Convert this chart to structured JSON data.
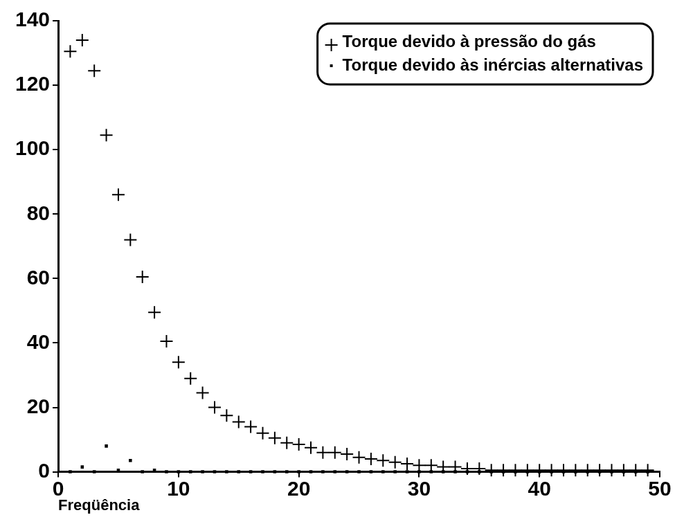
{
  "chart_data": {
    "type": "scatter",
    "xlabel": "Freqüência",
    "xlim": [
      0,
      50
    ],
    "xticks": [
      0,
      10,
      20,
      30,
      40,
      50
    ],
    "ylim": [
      0,
      140
    ],
    "yticks": [
      0,
      20,
      40,
      60,
      80,
      100,
      120,
      140
    ],
    "grid": false,
    "legend": "top right",
    "x": [
      1,
      2,
      3,
      4,
      5,
      6,
      7,
      8,
      9,
      10,
      11,
      12,
      13,
      14,
      15,
      16,
      17,
      18,
      19,
      20,
      21,
      22,
      23,
      24,
      25,
      26,
      27,
      28,
      29,
      30,
      31,
      32,
      33,
      34,
      35,
      36,
      37,
      38,
      39,
      40,
      41,
      42,
      43,
      44,
      45,
      46,
      47,
      48,
      49
    ],
    "series": [
      {
        "name": "Torque devido à pressão do gás",
        "color": "#000000",
        "marker": "cross",
        "values": [
          130.5,
          134,
          124.5,
          104.5,
          86,
          72,
          60.5,
          49.5,
          40.5,
          34,
          29,
          24.5,
          20,
          17.5,
          15.5,
          14,
          12,
          10.5,
          9,
          8.5,
          7.5,
          6,
          6,
          5.5,
          4.5,
          4,
          3.5,
          3,
          2.5,
          2,
          2,
          1.5,
          1.5,
          1,
          1,
          0.5,
          0.5,
          0.5,
          0.5,
          0.5,
          0.5,
          0.5,
          0.5,
          0.5,
          0.5,
          0.5,
          0.5,
          0.5,
          0.5
        ]
      },
      {
        "name": "Torque devido às inércias alternativas",
        "color": "#000000",
        "marker": "square",
        "values": [
          0,
          1.5,
          0,
          8,
          0.5,
          3.5,
          0,
          0.5,
          0,
          0,
          0,
          0,
          0,
          0,
          0,
          0,
          0,
          0,
          0,
          0,
          0,
          0,
          0,
          0,
          0,
          0,
          0,
          0,
          0,
          0,
          0,
          0,
          0,
          0,
          0,
          0,
          0,
          0,
          0,
          0,
          0,
          0,
          0,
          0,
          0,
          0,
          0,
          0,
          0
        ]
      }
    ]
  }
}
